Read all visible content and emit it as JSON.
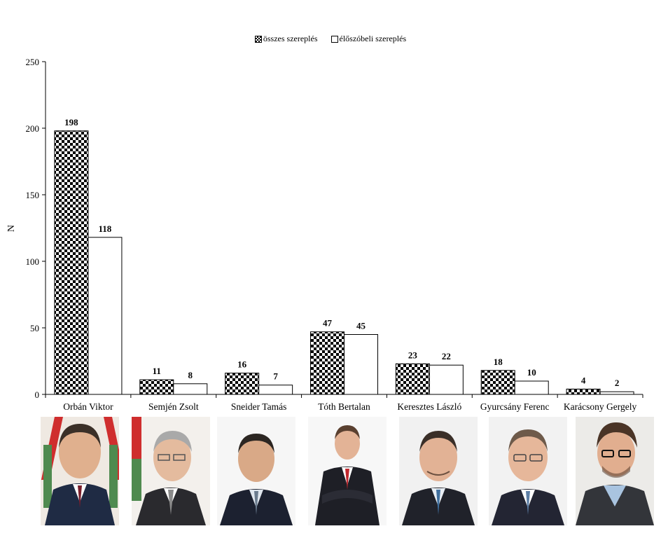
{
  "chart_data": {
    "type": "bar",
    "title": "",
    "xlabel": "",
    "ylabel": "N",
    "ylim": [
      0,
      250
    ],
    "yticks": [
      0,
      50,
      100,
      150,
      200,
      250
    ],
    "grid": false,
    "legend": {
      "placement": "top-center"
    },
    "categories": [
      "Orbán Viktor",
      "Semjén Zsolt",
      "Sneider Tamás",
      "Tóth Bertalan",
      "Keresztes László",
      "Gyurcsány Ferenc",
      "Karácsony Gergely"
    ],
    "series": [
      {
        "name": "összes szereplés",
        "pattern": "checkerboard",
        "values": [
          198,
          11,
          16,
          47,
          23,
          18,
          4
        ]
      },
      {
        "name": "élőszóbeli szereplés",
        "pattern": "white",
        "values": [
          118,
          8,
          7,
          45,
          22,
          10,
          2
        ]
      }
    ]
  },
  "colors": {
    "fill_dark": "#000000",
    "fill_light": "#ffffff",
    "axis": "#000000"
  }
}
